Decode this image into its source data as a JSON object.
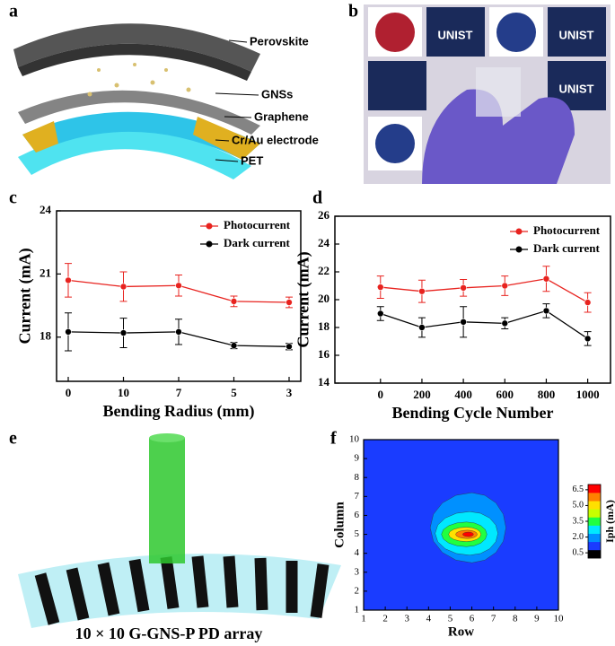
{
  "panel_labels": [
    "a",
    "b",
    "c",
    "d",
    "e",
    "f"
  ],
  "diagram_a": {
    "labels": [
      "Perovskite",
      "GNSs",
      "Graphene",
      "Cr/Au electrode",
      "PET"
    ]
  },
  "photo_b": {
    "labels": [
      "UNIST",
      "UNIST",
      "UNIST"
    ]
  },
  "diagram_e": {
    "caption": "10 × 10 G-GNS-P PD array"
  },
  "chart_data": [
    {
      "type": "line",
      "x_label": "Bending Radius (mm)",
      "y_label": "Current (mA)",
      "categories": [
        "0",
        "10",
        "7",
        "5",
        "3"
      ],
      "ylim": [
        15.9,
        24
      ],
      "yticks": [
        18,
        21,
        24
      ],
      "legend": "upper right",
      "series": [
        {
          "name": "Photocurrent",
          "color": "#e8231f",
          "values": [
            20.7,
            20.4,
            20.45,
            19.7,
            19.65
          ],
          "errors": [
            0.8,
            0.7,
            0.5,
            0.25,
            0.25
          ]
        },
        {
          "name": "Dark current",
          "color": "#000000",
          "values": [
            18.25,
            18.2,
            18.25,
            17.6,
            17.55
          ],
          "errors": [
            0.9,
            0.7,
            0.6,
            0.15,
            0.15
          ]
        }
      ]
    },
    {
      "type": "line",
      "x_label": "Bending Cycle Number",
      "y_label": "Current (mA)",
      "x": [
        0,
        200,
        400,
        600,
        800,
        1000
      ],
      "xlim": [
        -220,
        1110
      ],
      "xticks": [
        0,
        200,
        400,
        600,
        800,
        1000
      ],
      "ylim": [
        14,
        26
      ],
      "yticks": [
        14,
        16,
        18,
        20,
        22,
        24,
        26
      ],
      "legend": "upper right",
      "series": [
        {
          "name": "Photocurrent",
          "color": "#e8231f",
          "values": [
            20.9,
            20.6,
            20.85,
            21.0,
            21.5,
            19.8
          ],
          "errors": [
            0.8,
            0.8,
            0.6,
            0.7,
            0.9,
            0.7
          ]
        },
        {
          "name": "Dark current",
          "color": "#000000",
          "values": [
            19.0,
            18.0,
            18.4,
            18.3,
            19.2,
            17.2
          ],
          "errors": [
            0.5,
            0.7,
            1.1,
            0.4,
            0.5,
            0.5
          ]
        }
      ]
    },
    {
      "type": "contour",
      "x_label": "Row",
      "y_label": "Column",
      "xlim": [
        1,
        10
      ],
      "ylim": [
        1,
        10
      ],
      "xticks": [
        1,
        2,
        3,
        4,
        5,
        6,
        7,
        8,
        9,
        10
      ],
      "yticks": [
        1,
        2,
        3,
        4,
        5,
        6,
        7,
        8,
        9,
        10
      ],
      "colorbar": {
        "label": "Iph (mA)",
        "lim": [
          0,
          7
        ],
        "ticks": [
          0.5,
          {
            "value": 2,
            "label": "2.0"
          },
          3.5,
          {
            "value": 5,
            "label": "5.0"
          },
          6.5
        ],
        "colors": [
          "#000000",
          "#1a3cff",
          "#0090ff",
          "#00e8ff",
          "#20ff40",
          "#c8ff00",
          "#ffe000",
          "#ff8000",
          "#ff0000"
        ]
      }
    }
  ]
}
